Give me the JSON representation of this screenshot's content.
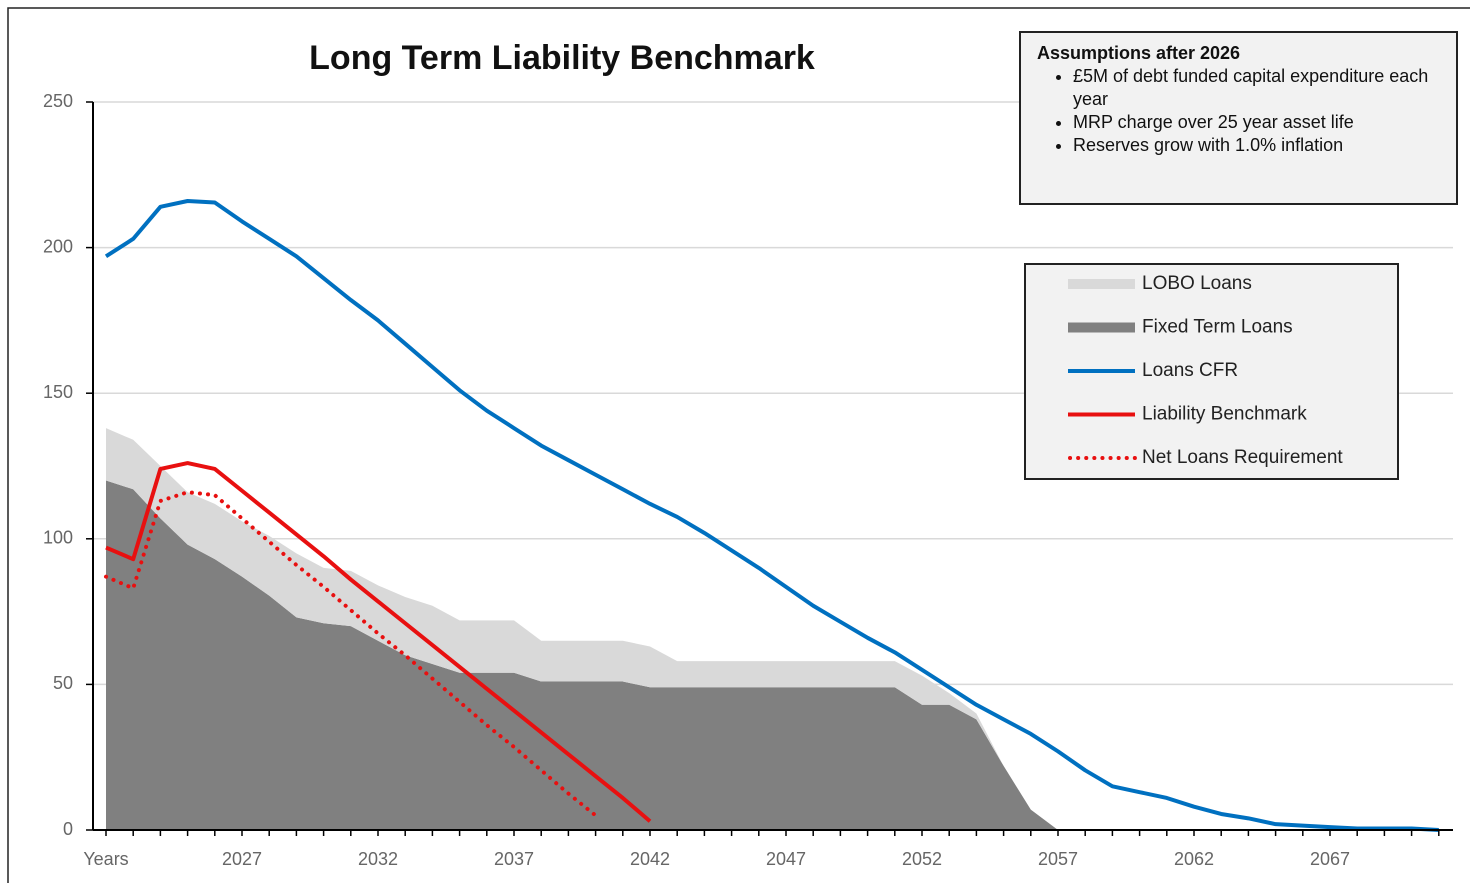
{
  "chart_data": {
    "type": "line",
    "title": "Long Term Liability Benchmark",
    "categories": [
      "Years",
      null,
      null,
      null,
      null,
      "2027",
      null,
      null,
      null,
      null,
      "2032",
      null,
      null,
      null,
      null,
      "2037",
      null,
      null,
      null,
      null,
      "2042",
      null,
      null,
      null,
      null,
      "2047",
      null,
      null,
      null,
      null,
      "2052",
      null,
      null,
      null,
      null,
      "2057",
      null,
      null,
      null,
      null,
      "2062",
      null,
      null,
      null,
      null,
      "2067",
      null,
      null,
      null,
      null
    ],
    "series": [
      {
        "name": "LOBO Loans",
        "type": "area",
        "stacked": true,
        "color": "#d9d9d9",
        "values": [
          18,
          17,
          18,
          18,
          19,
          19,
          20.5,
          22,
          19,
          19,
          19,
          20,
          20,
          18,
          18,
          18,
          14,
          14,
          14,
          14,
          14,
          9,
          9,
          9,
          9,
          9,
          9,
          9,
          9,
          9,
          10,
          4,
          2,
          0,
          0,
          0,
          null,
          null,
          null,
          null,
          null,
          null,
          null,
          null,
          null,
          null,
          null,
          null,
          null,
          null
        ]
      },
      {
        "name": "Fixed Term Loans",
        "type": "area",
        "stacked": true,
        "color": "#808080",
        "values": [
          120,
          117,
          107,
          98,
          93,
          87,
          80.5,
          73,
          71,
          70,
          65,
          60,
          57,
          54,
          54,
          54,
          51,
          51,
          51,
          51,
          49,
          49,
          49,
          49,
          49,
          49,
          49,
          49,
          49,
          49,
          43,
          43,
          38,
          22,
          7,
          0,
          null,
          null,
          null,
          null,
          null,
          null,
          null,
          null,
          null,
          null,
          null,
          null,
          null,
          null
        ]
      },
      {
        "name": "Loans CFR",
        "type": "line",
        "color": "#0070c0",
        "values": [
          197,
          203,
          214,
          216,
          215.5,
          209,
          203,
          197,
          189.5,
          182,
          175,
          167,
          159,
          151,
          144,
          138,
          132,
          127,
          122,
          117,
          112,
          107.5,
          102,
          96,
          90,
          83.5,
          77,
          71.5,
          66,
          61,
          55,
          49,
          43,
          38,
          33,
          27,
          20.5,
          15,
          13,
          11,
          8,
          5.5,
          4,
          2,
          1.5,
          1,
          0.5,
          0.5,
          0.5,
          0
        ]
      },
      {
        "name": "Liability Benchmark",
        "type": "line",
        "color": "#e81010",
        "values": [
          97,
          93,
          124,
          126,
          124,
          116.5,
          109,
          101.5,
          94,
          86,
          78.5,
          71,
          63.5,
          56,
          48.5,
          41,
          33.5,
          26,
          18.5,
          11,
          3,
          null,
          null,
          null,
          null,
          null,
          null,
          null,
          null,
          null,
          null,
          null,
          null,
          null,
          null,
          null,
          null,
          null,
          null,
          null,
          null,
          null,
          null,
          null,
          null,
          null,
          null,
          null,
          null,
          null
        ]
      },
      {
        "name": "Net Loans Requirement",
        "type": "line",
        "dash": "dotted",
        "color": "#e81010",
        "values": [
          87,
          83,
          113,
          116,
          115,
          107,
          99,
          91,
          83.5,
          75.5,
          67.5,
          60,
          52,
          44,
          36,
          28.5,
          20.5,
          12.5,
          5,
          null,
          null,
          null,
          null,
          null,
          null,
          null,
          null,
          null,
          null,
          null,
          null,
          null,
          null,
          null,
          null,
          null,
          null,
          null,
          null,
          null,
          null,
          null,
          null,
          null,
          null,
          null,
          null,
          null,
          null,
          null
        ]
      }
    ],
    "ylim": [
      0,
      250
    ],
    "yticks": [
      0,
      50,
      100,
      150,
      200,
      250
    ],
    "grid": true,
    "legend": "right",
    "annotation": {
      "title": "Assumptions  after 2026",
      "items": [
        "£5M of debt funded capital expenditure each year",
        "MRP  charge over  25  year asset life",
        "Reserves  grow with  1.0%  inflation"
      ]
    }
  }
}
